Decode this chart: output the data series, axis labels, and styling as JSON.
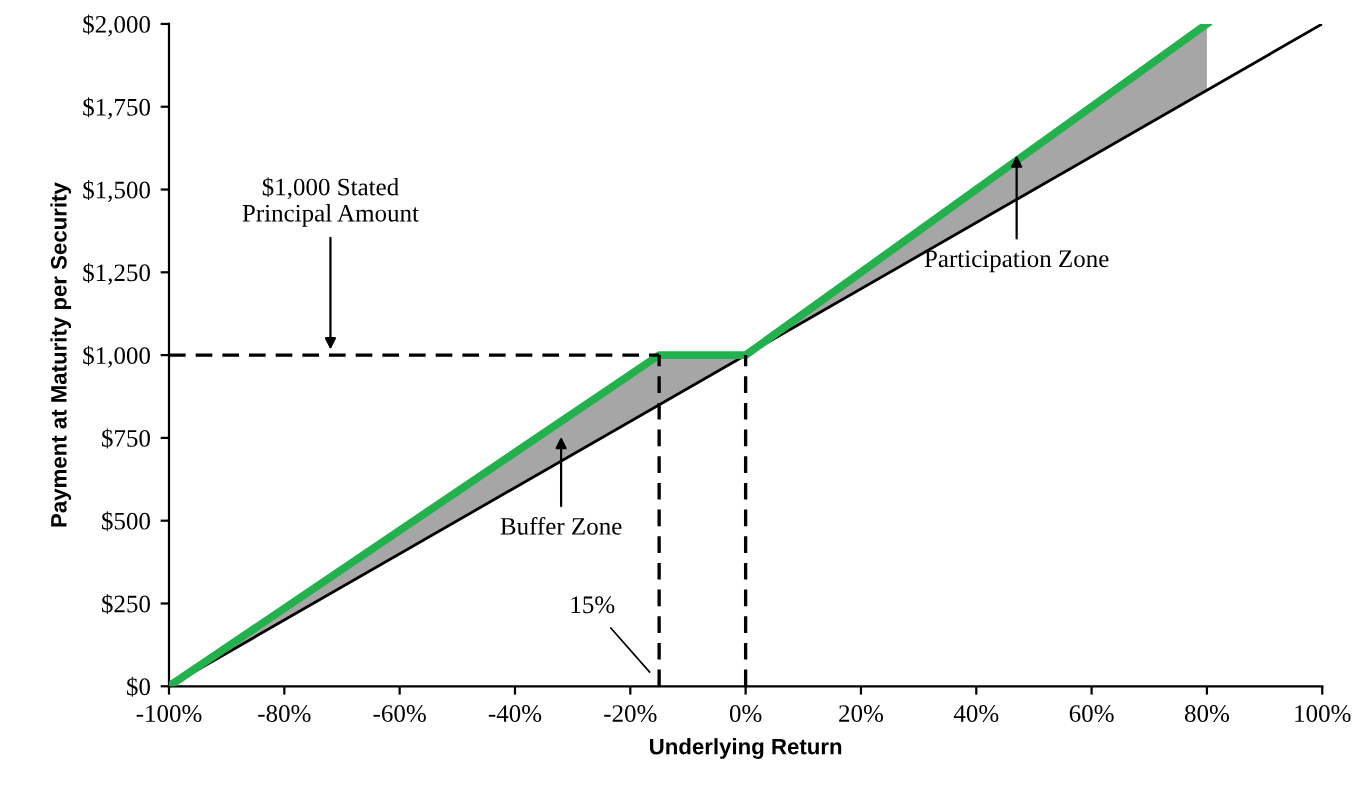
{
  "chart_data": {
    "type": "line",
    "xlabel": "Underlying Return",
    "ylabel": "Payment at Maturity per Security",
    "series": [
      {
        "color": "#000000",
        "x": [
          -100,
          100
        ],
        "values": [
          0,
          2000
        ]
      },
      {
        "color": "#22b14c",
        "x": [
          -100,
          -15,
          0,
          80
        ],
        "values": [
          0,
          1000,
          1000,
          2000
        ],
        "lower": [
          0,
          850,
          1000,
          1800
        ],
        "upper": [
          0,
          1000,
          1000,
          2000
        ]
      },
      {
        "color": "#000000",
        "line_style": "dashed",
        "x": [
          -100,
          -15
        ],
        "values": [
          1000,
          1000
        ]
      },
      {
        "color": "#000000",
        "line_style": "dashed",
        "x": [
          -15,
          -15
        ],
        "values": [
          0,
          1000
        ]
      },
      {
        "color": "#000000",
        "line_style": "dashed",
        "x": [
          0,
          0
        ],
        "values": [
          0,
          1000
        ]
      }
    ],
    "annotations": [
      {
        "text": "$1,000 Stated\nPrincipal Amount",
        "x": -72,
        "y": 1000
      },
      {
        "text": "Buffer Zone",
        "x": -32,
        "y": 770
      },
      {
        "text": "Participation Zone",
        "x": 47,
        "y": 1620
      },
      {
        "text": "15%",
        "x": -16,
        "y": 30
      }
    ],
    "xlim": [
      -100,
      100
    ],
    "xticks": [
      {
        "value": -100,
        "label": "-100%"
      },
      {
        "value": -80,
        "label": "-80%"
      },
      {
        "value": -60,
        "label": "-60%"
      },
      {
        "value": -40,
        "label": "-40%"
      },
      {
        "value": -20,
        "label": "-20%"
      },
      {
        "value": 0,
        "label": "0%"
      },
      {
        "value": 20,
        "label": "20%"
      },
      {
        "value": 40,
        "label": "40%"
      },
      {
        "value": 60,
        "label": "60%"
      },
      {
        "value": 80,
        "label": "80%"
      },
      {
        "value": 100,
        "label": "100%"
      }
    ],
    "ylim": [
      0,
      2000
    ],
    "yticks": [
      {
        "value": 0,
        "label": "$0"
      },
      {
        "value": 250,
        "label": "$250"
      },
      {
        "value": 500,
        "label": "$500"
      },
      {
        "value": 750,
        "label": "$750"
      },
      {
        "value": 1000,
        "label": "$1,000"
      },
      {
        "value": 1250,
        "label": "$1,250"
      },
      {
        "value": 1500,
        "label": "$1,500"
      },
      {
        "value": 1750,
        "label": "$1,750"
      },
      {
        "value": 2000,
        "label": "$2,000"
      }
    ],
    "grid": false,
    "legend": false,
    "marker": "none"
  }
}
